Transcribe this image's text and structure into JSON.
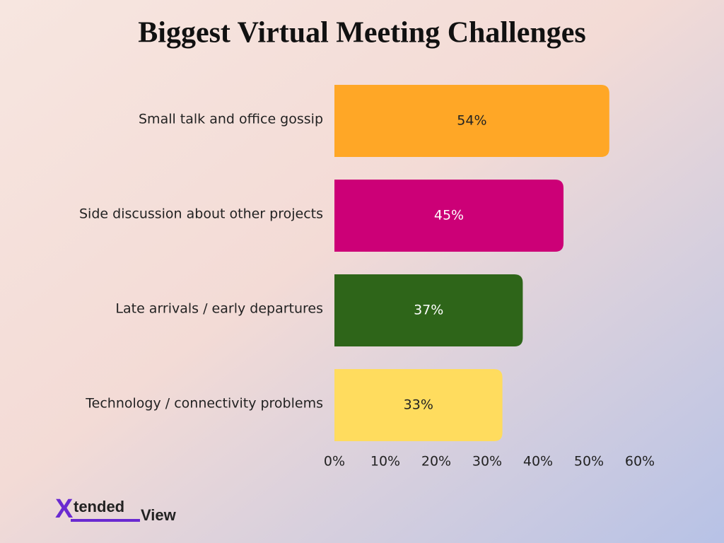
{
  "chart_data": {
    "type": "bar",
    "orientation": "horizontal",
    "title": "Biggest Virtual Meeting Challenges",
    "categories": [
      "Small talk and office gossip",
      "Side discussion about other projects",
      "Late arrivals / early departures",
      "Technology / connectivity problems"
    ],
    "values": [
      54,
      45,
      37,
      33
    ],
    "value_labels": [
      "54%",
      "45%",
      "37%",
      "33%"
    ],
    "colors": [
      "#ffa726",
      "#cc0077",
      "#2e6519",
      "#ffdc5e"
    ],
    "value_label_colors": [
      "#222222",
      "#ffffff",
      "#ffffff",
      "#222222"
    ],
    "xlim": [
      0,
      60
    ],
    "xticks": [
      {
        "value": 0,
        "label": "0%"
      },
      {
        "value": 10,
        "label": "10%"
      },
      {
        "value": 20,
        "label": "20%"
      },
      {
        "value": 30,
        "label": "30%"
      },
      {
        "value": 40,
        "label": "40%"
      },
      {
        "value": 50,
        "label": "50%"
      },
      {
        "value": 60,
        "label": "60%"
      }
    ],
    "grid": false
  },
  "logo": {
    "mark": "X",
    "word1": "tended",
    "word2": "View"
  }
}
